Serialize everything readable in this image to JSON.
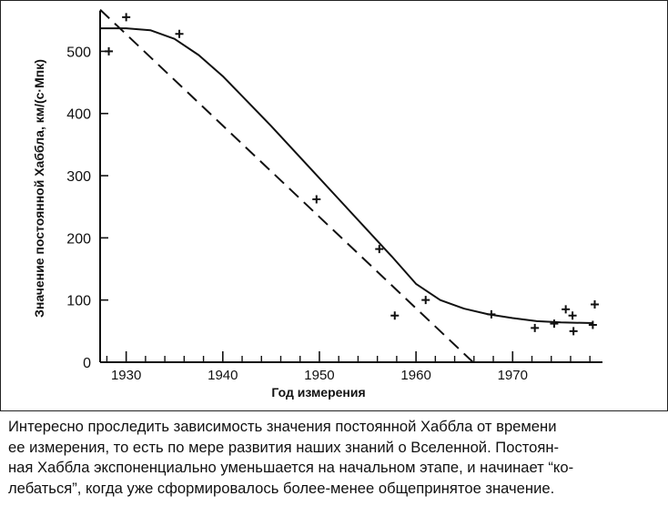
{
  "chart_data": {
    "type": "scatter",
    "xlabel": "Год измерения",
    "ylabel": "Значение постоянной Хаббла, км/(с·Мпк)",
    "xlim": [
      1927.3,
      1979.3
    ],
    "ylim": [
      0,
      565
    ],
    "x_ticks": [
      1930,
      1940,
      1950,
      1960,
      1970
    ],
    "y_ticks": [
      0,
      100,
      200,
      300,
      400,
      500
    ],
    "grid": false,
    "series": [
      {
        "kind": "measurements",
        "marker": "+",
        "points": [
          {
            "x": 1928.2,
            "y": 500
          },
          {
            "x": 1930.0,
            "y": 555
          },
          {
            "x": 1935.5,
            "y": 528
          },
          {
            "x": 1949.7,
            "y": 262
          },
          {
            "x": 1956.2,
            "y": 182
          },
          {
            "x": 1957.8,
            "y": 75
          },
          {
            "x": 1961.0,
            "y": 100
          },
          {
            "x": 1967.8,
            "y": 77
          },
          {
            "x": 1972.3,
            "y": 55
          },
          {
            "x": 1974.3,
            "y": 62
          },
          {
            "x": 1975.5,
            "y": 85
          },
          {
            "x": 1976.2,
            "y": 75
          },
          {
            "x": 1976.3,
            "y": 50
          },
          {
            "x": 1978.5,
            "y": 93
          },
          {
            "x": 1978.3,
            "y": 60
          }
        ]
      },
      {
        "kind": "fit-curve",
        "style": "solid",
        "points": [
          {
            "x": 1927.3,
            "y": 537
          },
          {
            "x": 1930,
            "y": 537
          },
          {
            "x": 1932.5,
            "y": 534
          },
          {
            "x": 1935,
            "y": 520
          },
          {
            "x": 1937.5,
            "y": 494
          },
          {
            "x": 1940,
            "y": 460
          },
          {
            "x": 1942.5,
            "y": 420
          },
          {
            "x": 1945,
            "y": 380
          },
          {
            "x": 1947.5,
            "y": 338
          },
          {
            "x": 1950,
            "y": 296
          },
          {
            "x": 1952.5,
            "y": 254
          },
          {
            "x": 1955,
            "y": 212
          },
          {
            "x": 1957.5,
            "y": 170
          },
          {
            "x": 1960,
            "y": 126
          },
          {
            "x": 1962.5,
            "y": 100
          },
          {
            "x": 1965,
            "y": 86
          },
          {
            "x": 1967.5,
            "y": 77
          },
          {
            "x": 1970,
            "y": 71
          },
          {
            "x": 1972.5,
            "y": 66
          },
          {
            "x": 1975,
            "y": 64
          },
          {
            "x": 1978.3,
            "y": 63
          }
        ]
      },
      {
        "kind": "trend-line",
        "style": "dashed",
        "points": [
          {
            "x": 1927.3,
            "y": 567
          },
          {
            "x": 1965.9,
            "y": 0
          }
        ]
      }
    ],
    "colors": {
      "ink": "#111111",
      "background": "#ffffff"
    }
  },
  "caption": {
    "lines": [
      "Интересно проследить зависимость значения постоянной Хаббла от времени",
      "ее измерения, то есть по мере развития наших знаний о Вселенной. Постоян-",
      "ная Хаббла экспоненциально уменьшается на начальном этапе, и начинает “ко-",
      "лебаться”, когда уже сформировалось более-менее общепринятое значение."
    ]
  }
}
